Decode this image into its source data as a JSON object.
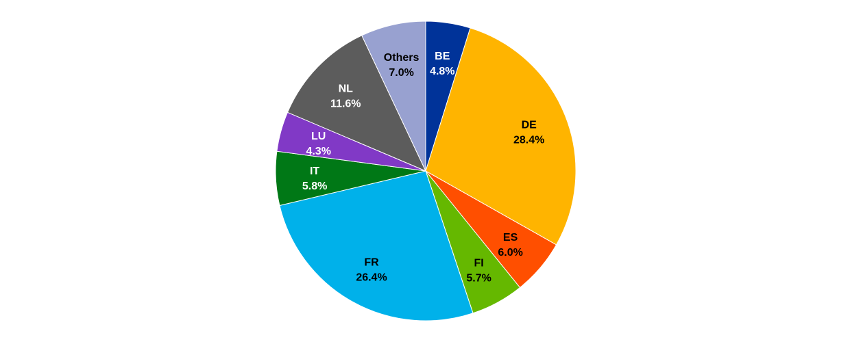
{
  "chart_data": {
    "type": "pie",
    "title": "",
    "start_angle_deg": 0,
    "direction": "clockwise",
    "slices": [
      {
        "label": "BE",
        "value": 4.8,
        "value_label": "4.8%",
        "color": "#003399",
        "label_color": "#ffffff"
      },
      {
        "label": "DE",
        "value": 28.4,
        "value_label": "28.4%",
        "color": "#FFB400",
        "label_color": "#000000"
      },
      {
        "label": "ES",
        "value": 6.0,
        "value_label": "6.0%",
        "color": "#FF4F00",
        "label_color": "#000000"
      },
      {
        "label": "FI",
        "value": 5.7,
        "value_label": "5.7%",
        "color": "#65B800",
        "label_color": "#000000"
      },
      {
        "label": "FR",
        "value": 26.4,
        "value_label": "26.4%",
        "color": "#00B1EA",
        "label_color": "#000000"
      },
      {
        "label": "IT",
        "value": 5.8,
        "value_label": "5.8%",
        "color": "#007816",
        "label_color": "#ffffff"
      },
      {
        "label": "LU",
        "value": 4.3,
        "value_label": "4.3%",
        "color": "#8139C6",
        "label_color": "#ffffff"
      },
      {
        "label": "NL",
        "value": 11.6,
        "value_label": "11.6%",
        "color": "#5C5C5C",
        "label_color": "#ffffff"
      },
      {
        "label": "Others",
        "value": 7.0,
        "value_label": "7.0%",
        "color": "#98A1D0",
        "label_color": "#000000"
      }
    ]
  }
}
